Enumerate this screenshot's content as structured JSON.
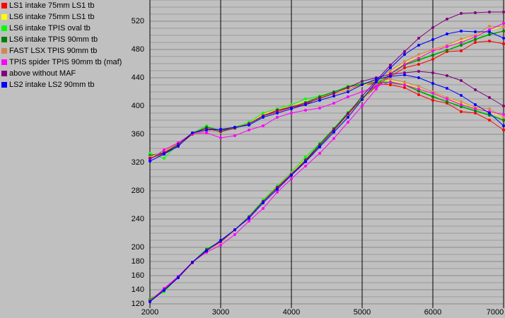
{
  "chart_data": {
    "type": "line",
    "x": [
      2000,
      2200,
      2400,
      2600,
      2800,
      3000,
      3200,
      3400,
      3600,
      3800,
      4000,
      4200,
      4400,
      4600,
      4800,
      5000,
      5200,
      5400,
      5600,
      5800,
      6000,
      6200,
      6400,
      6600,
      6800,
      7000
    ],
    "xlim": [
      2000,
      7000
    ],
    "xticks": [
      2000,
      3000,
      4000,
      5000,
      6000,
      7000
    ],
    "ylim": [
      114,
      550
    ],
    "yticks": [
      120,
      140,
      160,
      180,
      200,
      240,
      280,
      320,
      360,
      400,
      440,
      480,
      520
    ],
    "grid": true,
    "grid_step": 10,
    "legend": "top-left",
    "series": [
      {
        "name": "LS1 intake 75mm LS1 tb",
        "color": "#ff0000",
        "torque": [
          326,
          333,
          344,
          360,
          368,
          366,
          369,
          375,
          386,
          392,
          398,
          402,
          412,
          418,
          424,
          430,
          432,
          430,
          426,
          416,
          408,
          404,
          392,
          390,
          380,
          366
        ],
        "hp": [
          124,
          140,
          157,
          178,
          196,
          209,
          225,
          243,
          265,
          284,
          303,
          321,
          345,
          366,
          388,
          409,
          428,
          442,
          454,
          459,
          466,
          477,
          478,
          490,
          492,
          488
        ]
      },
      {
        "name": "LS6 intake 75mm LS1 tb",
        "color": "#ffff00",
        "torque": [
          327,
          335,
          346,
          361,
          367,
          365,
          369,
          376,
          388,
          395,
          400,
          406,
          412,
          418,
          424,
          429,
          435,
          436,
          432,
          425,
          418,
          412,
          404,
          398,
          392,
          384
        ],
        "hp": [
          125,
          140,
          158,
          179,
          196,
          209,
          225,
          243,
          266,
          286,
          305,
          325,
          345,
          366,
          387,
          408,
          431,
          448,
          461,
          469,
          478,
          486,
          492,
          500,
          508,
          512
        ]
      },
      {
        "name": "LS6 intake TPIS oval tb",
        "color": "#00ff00",
        "torque": [
          333,
          326,
          346,
          362,
          372,
          364,
          370,
          377,
          390,
          396,
          402,
          410,
          414,
          420,
          428,
          432,
          436,
          434,
          430,
          422,
          414,
          406,
          400,
          394,
          388,
          380
        ],
        "hp": [
          127,
          137,
          158,
          179,
          198,
          208,
          225,
          244,
          267,
          287,
          306,
          328,
          347,
          368,
          391,
          411,
          432,
          446,
          458,
          466,
          473,
          479,
          487,
          495,
          502,
          506
        ]
      },
      {
        "name": "LS6 intake TPIS 90mm tb",
        "color": "#008000",
        "torque": [
          330,
          334,
          344,
          361,
          370,
          366,
          368,
          375,
          386,
          394,
          399,
          405,
          413,
          420,
          427,
          431,
          434,
          433,
          430,
          421,
          413,
          406,
          399,
          393,
          387,
          380
        ],
        "hp": [
          126,
          140,
          157,
          179,
          197,
          209,
          224,
          243,
          265,
          285,
          304,
          324,
          346,
          368,
          390,
          410,
          430,
          445,
          458,
          465,
          472,
          479,
          486,
          494,
          501,
          506
        ]
      },
      {
        "name": "FAST LSX TPIS 90mm tb",
        "color": "#d08850",
        "torque": [
          328,
          336,
          347,
          361,
          364,
          363,
          368,
          375,
          387,
          394,
          400,
          404,
          410,
          417,
          423,
          430,
          436,
          438,
          434,
          428,
          420,
          412,
          406,
          398,
          396,
          384
        ],
        "hp": [
          125,
          141,
          159,
          179,
          194,
          207,
          224,
          243,
          265,
          285,
          305,
          323,
          344,
          365,
          387,
          409,
          432,
          450,
          463,
          473,
          480,
          486,
          495,
          500,
          513,
          512
        ]
      },
      {
        "name": "TPIS spider TPIS 90mm tb (maf)",
        "color": "#ff00ff",
        "torque": [
          324,
          338,
          348,
          361,
          362,
          355,
          358,
          366,
          372,
          384,
          390,
          394,
          397,
          404,
          413,
          420,
          428,
          434,
          430,
          424,
          418,
          410,
          402,
          396,
          392,
          388
        ],
        "hp": [
          123,
          142,
          159,
          179,
          193,
          203,
          218,
          237,
          255,
          278,
          297,
          315,
          333,
          354,
          377,
          400,
          424,
          446,
          459,
          468,
          478,
          484,
          490,
          498,
          508,
          517
        ]
      },
      {
        "name": "above without MAF",
        "color": "#800080",
        "torque": [
          326,
          334,
          346,
          362,
          368,
          364,
          369,
          375,
          386,
          394,
          398,
          404,
          411,
          418,
          426,
          435,
          440,
          445,
          447,
          449,
          447,
          443,
          436,
          423,
          412,
          400
        ],
        "hp": [
          124,
          140,
          158,
          179,
          196,
          208,
          225,
          243,
          265,
          285,
          303,
          323,
          344,
          366,
          389,
          414,
          436,
          458,
          477,
          496,
          511,
          523,
          531,
          532,
          533,
          533
        ]
      },
      {
        "name": "LS2 intake LS2 90mm tb",
        "color": "#0000ff",
        "torque": [
          322,
          332,
          343,
          362,
          366,
          367,
          370,
          373,
          384,
          390,
          396,
          402,
          408,
          414,
          420,
          430,
          438,
          442,
          444,
          440,
          432,
          425,
          415,
          402,
          390,
          372
        ],
        "hp": [
          123,
          139,
          157,
          179,
          195,
          210,
          225,
          241,
          263,
          282,
          302,
          321,
          342,
          363,
          384,
          409,
          434,
          454,
          473,
          486,
          494,
          502,
          506,
          505,
          505,
          496
        ]
      }
    ]
  }
}
